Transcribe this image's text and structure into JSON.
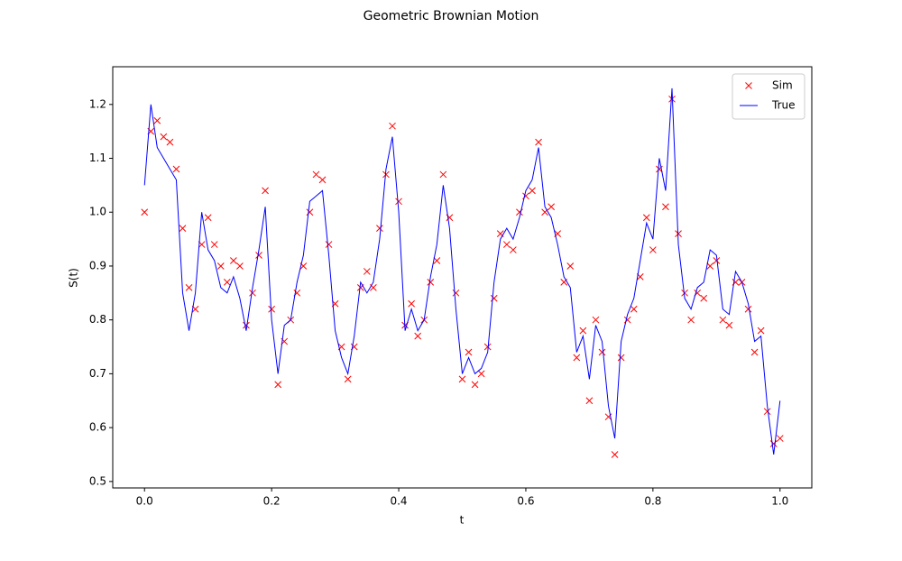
{
  "chart_data": {
    "type": "line",
    "title": "Geometric Brownian Motion",
    "xlabel": "t",
    "ylabel": "S(t)",
    "x": [
      0,
      0.01,
      0.02,
      0.03,
      0.04,
      0.05,
      0.06,
      0.07,
      0.08,
      0.09,
      0.1,
      0.11,
      0.12,
      0.13,
      0.14,
      0.15,
      0.16,
      0.17,
      0.18,
      0.19,
      0.2,
      0.21,
      0.22,
      0.23,
      0.24,
      0.25,
      0.26,
      0.27,
      0.28,
      0.29,
      0.3,
      0.31,
      0.32,
      0.33,
      0.34,
      0.35,
      0.36,
      0.37,
      0.38,
      0.39,
      0.4,
      0.41,
      0.42,
      0.43,
      0.44,
      0.45,
      0.46,
      0.47,
      0.48,
      0.49,
      0.5,
      0.51,
      0.52,
      0.53,
      0.54,
      0.55,
      0.56,
      0.57,
      0.58,
      0.59,
      0.6,
      0.61,
      0.62,
      0.63,
      0.64,
      0.65,
      0.66,
      0.67,
      0.68,
      0.69,
      0.7,
      0.71,
      0.72,
      0.73,
      0.74,
      0.75,
      0.76,
      0.77,
      0.78,
      0.79,
      0.8,
      0.81,
      0.82,
      0.83,
      0.84,
      0.85,
      0.86,
      0.87,
      0.88,
      0.89,
      0.9,
      0.91,
      0.92,
      0.93,
      0.94,
      0.95,
      0.96,
      0.97,
      0.98,
      0.99,
      1.0
    ],
    "series": [
      {
        "name": "Sim",
        "color": "#ff0000",
        "marker": "x",
        "values": [
          1.0,
          1.15,
          1.17,
          1.14,
          1.13,
          1.08,
          0.97,
          0.86,
          0.82,
          0.94,
          0.99,
          0.94,
          0.9,
          0.87,
          0.91,
          0.9,
          0.79,
          0.85,
          0.92,
          1.04,
          0.82,
          0.68,
          0.76,
          0.8,
          0.85,
          0.9,
          1.0,
          1.07,
          1.06,
          0.94,
          0.83,
          0.75,
          0.69,
          0.75,
          0.86,
          0.89,
          0.86,
          0.97,
          1.07,
          1.16,
          1.02,
          0.79,
          0.83,
          0.77,
          0.8,
          0.87,
          0.91,
          1.07,
          0.99,
          0.85,
          0.69,
          0.74,
          0.68,
          0.7,
          0.75,
          0.84,
          0.96,
          0.94,
          0.93,
          1.0,
          1.03,
          1.04,
          1.13,
          1.0,
          1.01,
          0.96,
          0.87,
          0.9,
          0.73,
          0.78,
          0.65,
          0.8,
          0.74,
          0.62,
          0.55,
          0.73,
          0.8,
          0.82,
          0.88,
          0.99,
          0.93,
          1.08,
          1.01,
          1.21,
          0.96,
          0.85,
          0.8,
          0.85,
          0.84,
          0.9,
          0.91,
          0.8,
          0.79,
          0.87,
          0.87,
          0.82,
          0.74,
          0.78,
          0.63,
          0.57,
          0.58
        ]
      },
      {
        "name": "True",
        "color": "#0000ff",
        "values": [
          1.05,
          1.2,
          1.12,
          1.1,
          1.08,
          1.06,
          0.85,
          0.78,
          0.85,
          1.0,
          0.93,
          0.91,
          0.86,
          0.85,
          0.88,
          0.84,
          0.78,
          0.86,
          0.93,
          1.01,
          0.8,
          0.7,
          0.79,
          0.8,
          0.87,
          0.92,
          1.02,
          1.03,
          1.04,
          0.92,
          0.78,
          0.73,
          0.7,
          0.77,
          0.87,
          0.85,
          0.87,
          0.95,
          1.08,
          1.14,
          1.0,
          0.78,
          0.82,
          0.78,
          0.8,
          0.88,
          0.94,
          1.05,
          0.97,
          0.82,
          0.7,
          0.73,
          0.7,
          0.71,
          0.74,
          0.87,
          0.95,
          0.97,
          0.95,
          0.99,
          1.04,
          1.06,
          1.12,
          1.01,
          0.99,
          0.94,
          0.88,
          0.86,
          0.74,
          0.77,
          0.69,
          0.79,
          0.76,
          0.64,
          0.58,
          0.76,
          0.81,
          0.84,
          0.91,
          0.98,
          0.95,
          1.1,
          1.04,
          1.23,
          0.94,
          0.84,
          0.82,
          0.86,
          0.87,
          0.93,
          0.92,
          0.82,
          0.81,
          0.89,
          0.87,
          0.83,
          0.76,
          0.77,
          0.64,
          0.55,
          0.65
        ]
      }
    ],
    "xlim": [
      -0.05,
      1.05
    ],
    "ylim": [
      0.488,
      1.27
    ],
    "xticks": [
      {
        "value": 0,
        "label": "0.0"
      },
      0.2,
      0.4,
      0.6,
      0.8,
      {
        "value": 1,
        "label": "1.0"
      }
    ],
    "yticks": [
      0.5,
      0.6,
      0.7,
      0.8,
      0.9,
      {
        "value": 1,
        "label": "1.0"
      },
      1.1,
      1.2
    ],
    "legend": "upper right"
  }
}
